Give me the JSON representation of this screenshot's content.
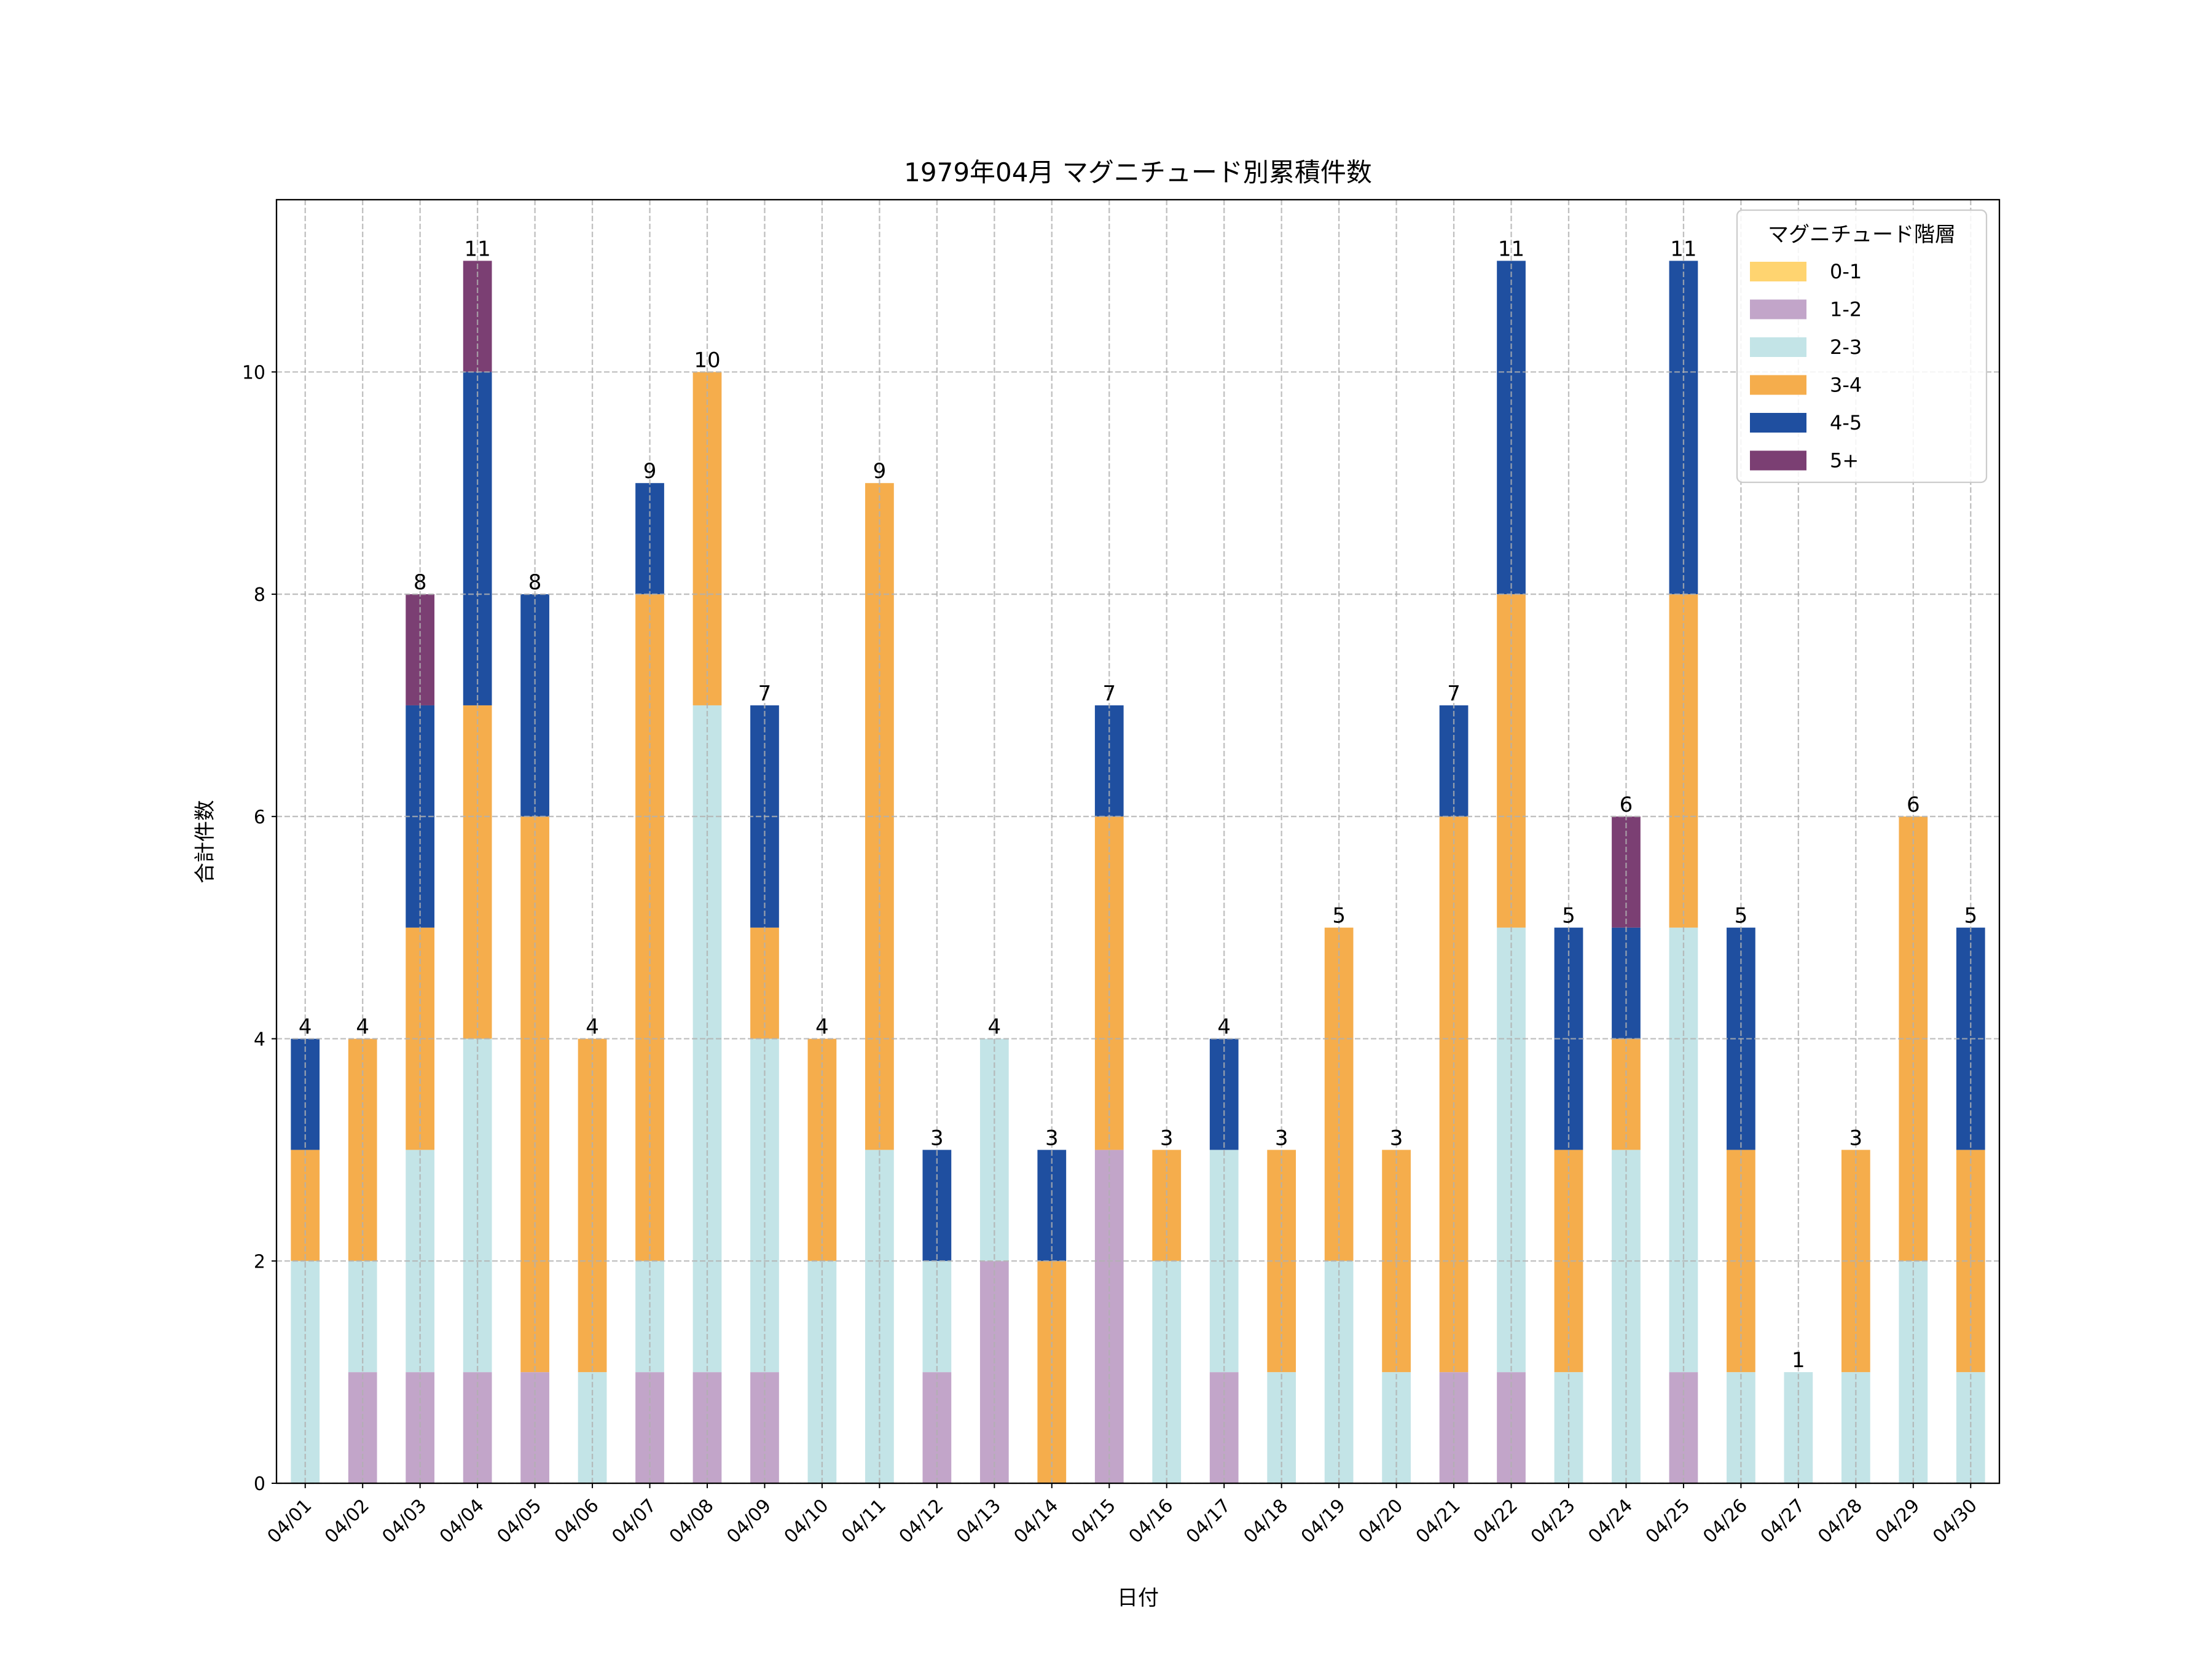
{
  "chart_data": {
    "type": "bar",
    "stacked": true,
    "title": "1979年04月 マグニチュード別累積件数",
    "xlabel": "日付",
    "ylabel": "合計件数",
    "ylim": [
      0,
      11.55
    ],
    "yticks": [
      0,
      2,
      4,
      6,
      8,
      10
    ],
    "grid": true,
    "legend": {
      "title": "マグニチュード階層",
      "placement": "top-right"
    },
    "categories": [
      "04/01",
      "04/02",
      "04/03",
      "04/04",
      "04/05",
      "04/06",
      "04/07",
      "04/08",
      "04/09",
      "04/10",
      "04/11",
      "04/12",
      "04/13",
      "04/14",
      "04/15",
      "04/16",
      "04/17",
      "04/18",
      "04/19",
      "04/20",
      "04/21",
      "04/22",
      "04/23",
      "04/24",
      "04/25",
      "04/26",
      "04/27",
      "04/28",
      "04/29",
      "04/30"
    ],
    "series": [
      {
        "name": "0-1",
        "color": "#FFD470",
        "values": [
          0,
          0,
          0,
          0,
          0,
          0,
          0,
          0,
          0,
          0,
          0,
          0,
          0,
          0,
          0,
          0,
          0,
          0,
          0,
          0,
          0,
          0,
          0,
          0,
          0,
          0,
          0,
          0,
          0,
          0
        ]
      },
      {
        "name": "1-2",
        "color": "#C2A5C9",
        "values": [
          0,
          1,
          1,
          1,
          1,
          0,
          1,
          1,
          1,
          0,
          0,
          1,
          2,
          0,
          3,
          0,
          1,
          0,
          0,
          0,
          1,
          1,
          0,
          0,
          1,
          0,
          0,
          0,
          0,
          0
        ]
      },
      {
        "name": "2-3",
        "color": "#C3E4E7",
        "values": [
          2,
          1,
          2,
          3,
          0,
          1,
          1,
          6,
          3,
          2,
          3,
          1,
          2,
          0,
          0,
          2,
          2,
          1,
          2,
          1,
          0,
          4,
          1,
          3,
          4,
          1,
          1,
          1,
          2,
          1
        ]
      },
      {
        "name": "3-4",
        "color": "#F5AD4C",
        "values": [
          1,
          2,
          2,
          3,
          5,
          3,
          6,
          3,
          1,
          2,
          6,
          0,
          0,
          2,
          3,
          1,
          0,
          2,
          3,
          2,
          5,
          3,
          2,
          1,
          3,
          2,
          0,
          2,
          4,
          2
        ]
      },
      {
        "name": "4-5",
        "color": "#1F4FA0",
        "values": [
          1,
          0,
          2,
          3,
          2,
          0,
          1,
          0,
          2,
          0,
          0,
          1,
          0,
          1,
          1,
          0,
          1,
          0,
          0,
          0,
          1,
          3,
          2,
          1,
          3,
          2,
          0,
          0,
          0,
          2
        ]
      },
      {
        "name": "5+",
        "color": "#7B3F73",
        "values": [
          0,
          0,
          1,
          1,
          0,
          0,
          0,
          0,
          0,
          0,
          0,
          0,
          0,
          0,
          0,
          0,
          0,
          0,
          0,
          0,
          0,
          0,
          0,
          1,
          0,
          0,
          0,
          0,
          0,
          0
        ]
      }
    ],
    "totals": [
      "4",
      "4",
      "8",
      "11",
      "8",
      "4",
      "9",
      "10",
      "7",
      "4",
      "9",
      "3",
      "4",
      "3",
      "7",
      "3",
      "4",
      "3",
      "5",
      "3",
      "7",
      "11",
      "5",
      "6",
      "11",
      "5",
      "1",
      "3",
      "6",
      "5"
    ]
  }
}
